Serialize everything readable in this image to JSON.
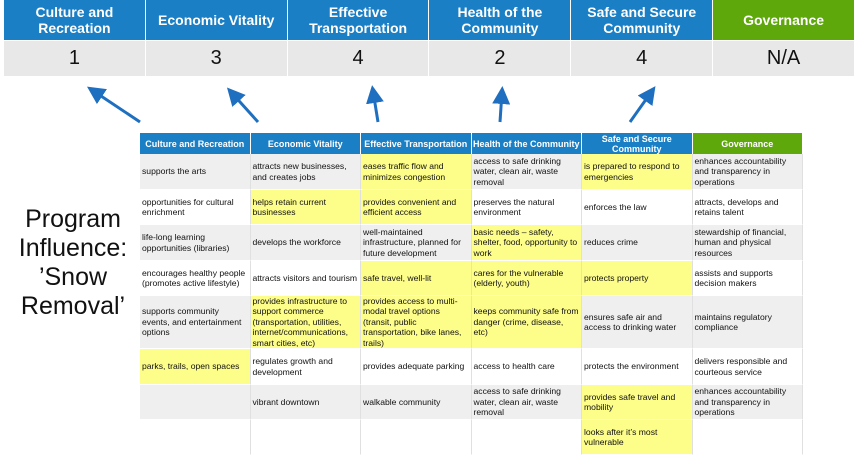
{
  "colors": {
    "blue": "#1a7fc4",
    "green": "#5fa80c",
    "highlight": "#fdfd8a",
    "arrow": "#1f6fc0"
  },
  "scores": [
    {
      "label": "Culture and Recreation",
      "value": "1"
    },
    {
      "label": "Economic Vitality",
      "value": "3"
    },
    {
      "label": "Effective Transportation",
      "value": "4"
    },
    {
      "label": "Health of the Community",
      "value": "2"
    },
    {
      "label": "Safe and Secure Community",
      "value": "4"
    },
    {
      "label": "Governance",
      "value": "N/A"
    }
  ],
  "side_title": "Program Influence: ’Snow Removal’",
  "table": {
    "headers": [
      "Culture and Recreation",
      "Economic Vitality",
      "Effective Transportation",
      "Health of the Community",
      "Safe and Secure Community",
      "Governance"
    ],
    "rows": [
      [
        {
          "t": "supports the arts"
        },
        {
          "t": "attracts new businesses, and creates jobs"
        },
        {
          "t": "eases traffic flow and minimizes congestion",
          "hl": true
        },
        {
          "t": "access to safe drinking water, clean air, waste removal"
        },
        {
          "t": "is prepared to respond to emergencies",
          "hl": true
        },
        {
          "t": "enhances accountability and transparency in operations"
        }
      ],
      [
        {
          "t": "opportunities for cultural enrichment"
        },
        {
          "t": "helps retain current businesses",
          "hl": true
        },
        {
          "t": "provides convenient and efficient access",
          "hl": true
        },
        {
          "t": "preserves the natural environment"
        },
        {
          "t": "enforces the law"
        },
        {
          "t": "attracts, develops and retains talent"
        }
      ],
      [
        {
          "t": "life-long learning opportunities (libraries)"
        },
        {
          "t": "develops the workforce"
        },
        {
          "t": "well-maintained infrastructure, planned for future development"
        },
        {
          "t": "basic needs – safety, shelter, food, opportunity to work",
          "hl": true
        },
        {
          "t": "reduces crime"
        },
        {
          "t": "stewardship of financial, human and physical resources"
        }
      ],
      [
        {
          "t": "encourages healthy people (promotes active lifestyle)"
        },
        {
          "t": "attracts visitors and tourism"
        },
        {
          "t": "safe travel, well-lit",
          "hl": true
        },
        {
          "t": "cares for the vulnerable (elderly, youth)",
          "hl": true
        },
        {
          "t": "protects property",
          "hl": true
        },
        {
          "t": "assists and supports decision makers"
        }
      ],
      [
        {
          "t": "supports community events, and entertainment options"
        },
        {
          "t": "provides infrastructure to support commerce (transportation, utilities, internet/communications, smart cities, etc)",
          "hl": true
        },
        {
          "t": "provides access to multi-modal travel options (transit, public transportation, bike lanes, trails)",
          "hl": true
        },
        {
          "t": "keeps community safe from danger (crime, disease, etc)",
          "hl": true
        },
        {
          "t": "ensures safe air and access to drinking water"
        },
        {
          "t": "maintains regulatory compliance"
        }
      ],
      [
        {
          "t": "parks, trails, open spaces",
          "hl": true
        },
        {
          "t": "regulates growth and development"
        },
        {
          "t": "provides adequate parking"
        },
        {
          "t": "access to health care"
        },
        {
          "t": "protects the environment"
        },
        {
          "t": "delivers responsible and courteous service"
        }
      ],
      [
        {
          "t": ""
        },
        {
          "t": "vibrant downtown"
        },
        {
          "t": "walkable community"
        },
        {
          "t": "access to safe drinking water, clean air, waste removal"
        },
        {
          "t": "provides safe travel and mobility",
          "hl": true
        },
        {
          "t": "enhances accountability and transparency in operations"
        }
      ],
      [
        {
          "t": ""
        },
        {
          "t": ""
        },
        {
          "t": ""
        },
        {
          "t": ""
        },
        {
          "t": "looks after it’s most vulnerable",
          "hl": true
        },
        {
          "t": ""
        }
      ]
    ]
  }
}
